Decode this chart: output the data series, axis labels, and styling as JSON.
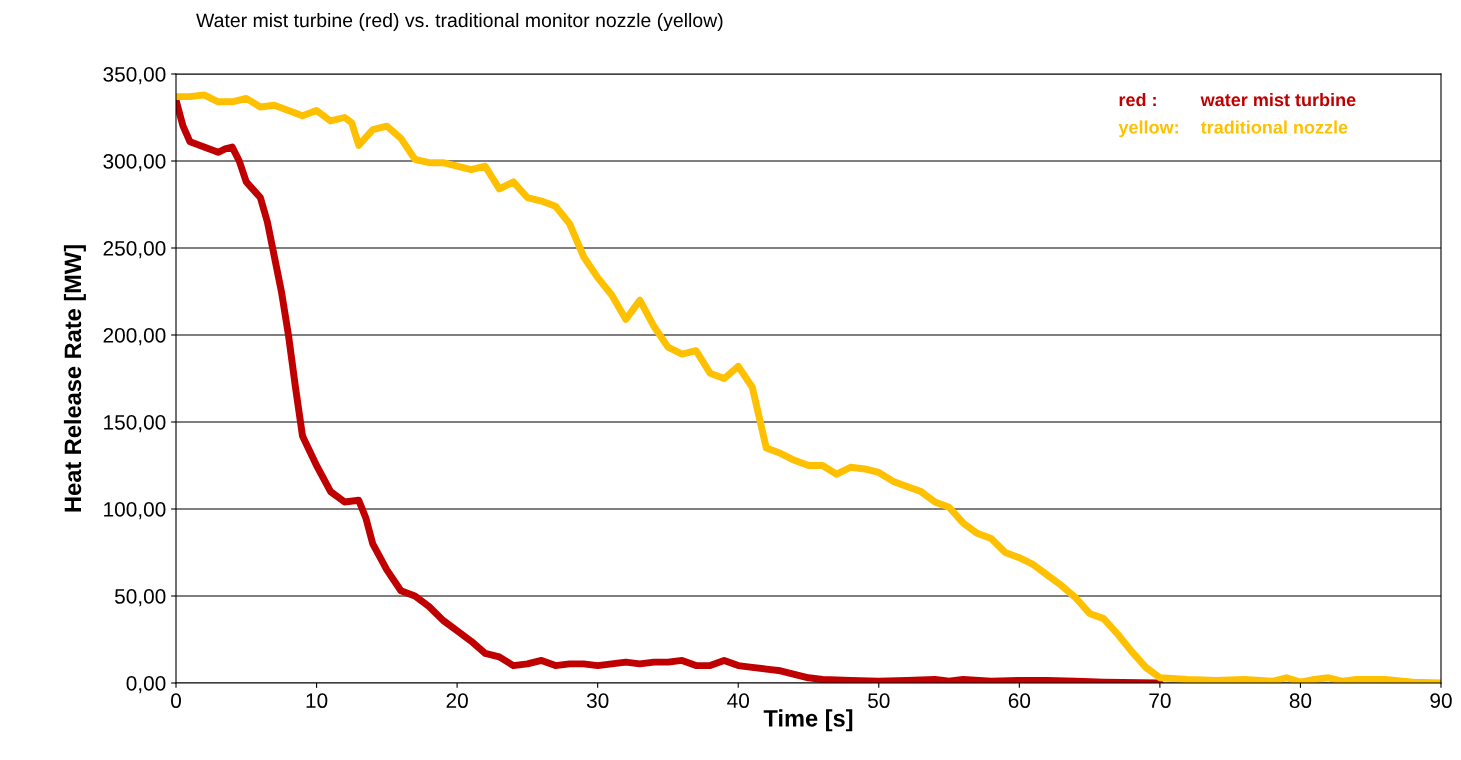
{
  "chart_data": {
    "type": "line",
    "title": "Water mist turbine (red) vs. traditional monitor nozzle (yellow)",
    "xlabel": "Time [s]",
    "ylabel": "Heat Release Rate [MW]",
    "xlim": [
      0,
      90
    ],
    "xticks": [
      0,
      10,
      20,
      30,
      40,
      50,
      60,
      70,
      80,
      90
    ],
    "ylim": [
      0,
      350
    ],
    "yticks": [
      {
        "value": 0,
        "label": "0,00"
      },
      {
        "value": 50,
        "label": "50,00"
      },
      {
        "value": 100,
        "label": "100,00"
      },
      {
        "value": 150,
        "label": "150,00"
      },
      {
        "value": 200,
        "label": "200,00"
      },
      {
        "value": 250,
        "label": "250,00"
      },
      {
        "value": 300,
        "label": "300,00"
      },
      {
        "value": 350,
        "label": "350,00"
      }
    ],
    "grid": "y",
    "legend": "top right",
    "line_style": "solid",
    "marker": "none",
    "annotations": [
      "red :",
      "yellow:"
    ],
    "series": [
      {
        "name": "water mist turbine",
        "color": "#c00000",
        "x": [
          0,
          0.5,
          1,
          2,
          3,
          3.5,
          4,
          4.5,
          5,
          6,
          6.5,
          7,
          7.5,
          8,
          8.5,
          9,
          10,
          11,
          12,
          13,
          13.5,
          14,
          15,
          16,
          17,
          18,
          19,
          20,
          21,
          22,
          23,
          24,
          25,
          26,
          27,
          28,
          29,
          30,
          31,
          32,
          33,
          34,
          35,
          36,
          37,
          38,
          39,
          40,
          41,
          42,
          43,
          44,
          45,
          46,
          48,
          50,
          52,
          54,
          55,
          56,
          58,
          60,
          62,
          64,
          66,
          70
        ],
        "values": [
          335,
          320,
          311,
          308,
          305,
          307,
          308,
          300,
          288,
          279,
          265,
          245,
          225,
          200,
          170,
          142,
          125,
          110,
          104,
          105,
          95,
          80,
          65,
          53,
          50,
          44,
          36,
          30,
          24,
          17,
          15,
          10,
          11,
          13,
          10,
          11,
          11,
          10,
          11,
          12,
          11,
          12,
          12,
          13,
          10,
          10,
          13,
          10,
          9,
          8,
          7,
          5,
          3,
          2,
          1.5,
          1,
          1.5,
          2,
          1,
          2,
          1,
          1.5,
          1.5,
          1,
          0.5,
          0
        ]
      },
      {
        "name": "traditional nozzle",
        "color": "#ffc000",
        "x": [
          0,
          1,
          2,
          3,
          4,
          5,
          6,
          7,
          8,
          9,
          10,
          11,
          12,
          12.5,
          13,
          14,
          15,
          16,
          17,
          18,
          19,
          20,
          21,
          22,
          23,
          24,
          25,
          26,
          27,
          28,
          29,
          30,
          31,
          32,
          33,
          34,
          35,
          36,
          37,
          38,
          39,
          40,
          41,
          42,
          43,
          44,
          45,
          46,
          47,
          48,
          49,
          50,
          51,
          52,
          53,
          54,
          55,
          56,
          57,
          58,
          59,
          60,
          61,
          62,
          63,
          64,
          65,
          66,
          67,
          68,
          69,
          70,
          72,
          74,
          76,
          78,
          79,
          80,
          81,
          82,
          83,
          84,
          86,
          88,
          90
        ],
        "values": [
          337,
          337,
          338,
          334,
          334,
          336,
          331,
          332,
          329,
          326,
          329,
          323,
          325,
          322,
          309,
          318,
          320,
          313,
          301,
          299,
          299,
          297,
          295,
          297,
          284,
          288,
          279,
          277,
          274,
          264,
          245,
          233,
          223,
          209,
          220,
          205,
          193,
          189,
          191,
          178,
          175,
          182,
          170,
          135,
          132,
          128,
          125,
          125,
          120,
          124,
          123,
          121,
          116,
          113,
          110,
          104,
          101,
          92,
          86,
          83,
          75,
          72,
          68,
          62,
          56,
          49,
          40,
          37,
          28,
          18,
          9,
          3,
          2,
          1.5,
          2,
          1,
          3,
          0.5,
          2,
          3,
          1,
          2,
          2,
          0.5,
          0
        ]
      }
    ]
  }
}
